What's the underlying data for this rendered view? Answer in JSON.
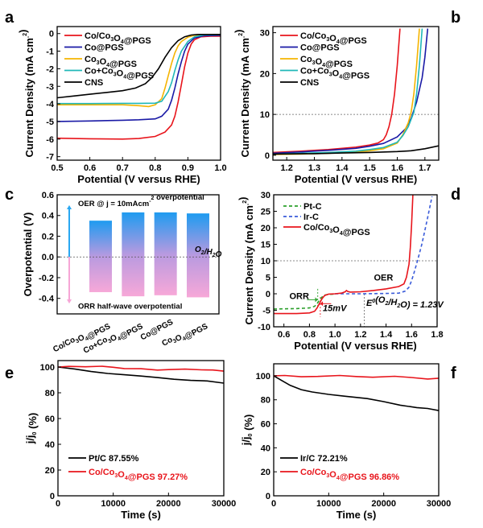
{
  "chart_data": [
    {
      "panel": "a",
      "type": "line",
      "xlabel": "Potential (V versus RHE)",
      "ylabel": "Current Density (mA cm⁻²)",
      "xlim": [
        0.5,
        1.0
      ],
      "ylim": [
        -7.2,
        0.4
      ],
      "xticks": [
        0.5,
        0.6,
        0.7,
        0.8,
        0.9,
        1.0
      ],
      "xtick_labels": [
        "0.5",
        "0.6",
        "0.7",
        "0.8",
        "0.9",
        "1.0"
      ],
      "yticks": [
        0,
        -1,
        -2,
        -3,
        -4,
        -5,
        -6,
        -7
      ],
      "ytick_labels": [
        "0",
        "-1",
        "-2",
        "-3",
        "-4",
        "-5",
        "-6",
        "-7"
      ],
      "legend_position": "top-left",
      "series": [
        {
          "name": "Co/Co₃O₄@PGS",
          "color": "#e8141b",
          "x": [
            0.5,
            0.6,
            0.7,
            0.75,
            0.8,
            0.83,
            0.85,
            0.86,
            0.87,
            0.88,
            0.89,
            0.9,
            0.91,
            0.92,
            0.94,
            0.97,
            1.0
          ],
          "y": [
            -5.95,
            -5.98,
            -6.0,
            -5.97,
            -5.85,
            -5.6,
            -5.2,
            -4.7,
            -3.9,
            -2.9,
            -1.9,
            -1.1,
            -0.6,
            -0.35,
            -0.18,
            -0.15,
            -0.15
          ]
        },
        {
          "name": "Co@PGS",
          "color": "#1a1aa6",
          "x": [
            0.5,
            0.6,
            0.7,
            0.75,
            0.8,
            0.82,
            0.84,
            0.85,
            0.86,
            0.87,
            0.88,
            0.89,
            0.9,
            0.92,
            0.95,
            1.0
          ],
          "y": [
            -5.0,
            -4.97,
            -4.93,
            -4.9,
            -4.85,
            -4.7,
            -4.3,
            -3.8,
            -3.1,
            -2.3,
            -1.6,
            -1.0,
            -0.6,
            -0.25,
            -0.12,
            -0.1
          ]
        },
        {
          "name": "Co₃O₄@PGS",
          "color": "#f5b400",
          "x": [
            0.5,
            0.6,
            0.7,
            0.75,
            0.78,
            0.8,
            0.82,
            0.83,
            0.84,
            0.85,
            0.86,
            0.87,
            0.88,
            0.9,
            0.92,
            0.95,
            1.0
          ],
          "y": [
            -4.05,
            -4.05,
            -4.05,
            -4.1,
            -4.15,
            -4.05,
            -3.7,
            -3.1,
            -2.4,
            -1.7,
            -1.1,
            -0.7,
            -0.45,
            -0.2,
            -0.1,
            -0.05,
            -0.05
          ]
        },
        {
          "name": "Co+Co₃O₄@PGS",
          "color": "#20b8b8",
          "x": [
            0.5,
            0.6,
            0.7,
            0.75,
            0.8,
            0.82,
            0.84,
            0.85,
            0.86,
            0.87,
            0.88,
            0.9,
            0.92,
            0.95,
            1.0
          ],
          "y": [
            -3.98,
            -3.98,
            -3.97,
            -3.97,
            -3.96,
            -3.85,
            -3.3,
            -2.8,
            -2.1,
            -1.5,
            -1.0,
            -0.45,
            -0.18,
            -0.07,
            -0.05
          ]
        },
        {
          "name": "CNS",
          "color": "#000000",
          "x": [
            0.5,
            0.55,
            0.6,
            0.65,
            0.7,
            0.74,
            0.77,
            0.79,
            0.81,
            0.83,
            0.85,
            0.87,
            0.89,
            0.91,
            0.93,
            0.95,
            1.0
          ],
          "y": [
            -3.65,
            -3.55,
            -3.45,
            -3.35,
            -3.25,
            -3.1,
            -2.85,
            -2.5,
            -2.0,
            -1.35,
            -0.8,
            -0.4,
            -0.18,
            -0.08,
            -0.05,
            -0.05,
            -0.05
          ]
        }
      ]
    },
    {
      "panel": "b",
      "type": "line",
      "xlabel": "Potential (V versus RHE)",
      "ylabel": "Current Density (mA cm⁻²)",
      "xlim": [
        1.15,
        1.75
      ],
      "ylim": [
        -1.2,
        31.5
      ],
      "xticks": [
        1.2,
        1.3,
        1.4,
        1.5,
        1.6,
        1.7
      ],
      "xtick_labels": [
        "1.2",
        "1.3",
        "1.4",
        "1.5",
        "1.6",
        "1.7"
      ],
      "yticks": [
        0,
        10,
        20,
        30
      ],
      "ytick_labels": [
        "0",
        "10",
        "20",
        "30"
      ],
      "reference_line": {
        "y": 10,
        "style": "dotted"
      },
      "legend_position": "top-left",
      "series": [
        {
          "name": "Co/Co₃O₄@PGS",
          "color": "#e8141b",
          "x": [
            1.15,
            1.25,
            1.35,
            1.45,
            1.5,
            1.53,
            1.55,
            1.56,
            1.57,
            1.58,
            1.59,
            1.6,
            1.61
          ],
          "y": [
            0.7,
            1.0,
            1.4,
            2.0,
            2.5,
            3.0,
            3.8,
            5.0,
            7.0,
            10.0,
            15.0,
            22.0,
            31.0
          ]
        },
        {
          "name": "Co@PGS",
          "color": "#1a1aa6",
          "x": [
            1.15,
            1.25,
            1.35,
            1.45,
            1.5,
            1.55,
            1.6,
            1.63,
            1.65,
            1.67,
            1.69,
            1.7,
            1.71
          ],
          "y": [
            0.5,
            0.8,
            1.2,
            1.7,
            2.2,
            2.9,
            4.5,
            6.5,
            9.0,
            13.0,
            19.0,
            24.0,
            31.0
          ]
        },
        {
          "name": "Co₃O₄@PGS",
          "color": "#f5b400",
          "x": [
            1.15,
            1.25,
            1.35,
            1.45,
            1.5,
            1.55,
            1.6,
            1.62,
            1.64,
            1.65,
            1.66,
            1.67,
            1.68
          ],
          "y": [
            0.2,
            0.3,
            0.5,
            0.8,
            1.1,
            1.6,
            3.0,
            5.0,
            8.0,
            10.5,
            15.0,
            22.0,
            31.0
          ]
        },
        {
          "name": "Co+Co₃O₄@PGS",
          "color": "#20b8b8",
          "x": [
            1.15,
            1.25,
            1.35,
            1.45,
            1.5,
            1.55,
            1.6,
            1.62,
            1.64,
            1.66,
            1.67,
            1.68,
            1.69
          ],
          "y": [
            0.3,
            0.5,
            0.7,
            1.0,
            1.4,
            1.9,
            3.2,
            4.8,
            7.0,
            10.5,
            15.0,
            22.0,
            31.0
          ]
        },
        {
          "name": "CNS",
          "color": "#000000",
          "x": [
            1.15,
            1.3,
            1.4,
            1.5,
            1.6,
            1.65,
            1.7,
            1.75
          ],
          "y": [
            0.3,
            0.4,
            0.55,
            0.7,
            0.9,
            1.1,
            1.6,
            2.3
          ]
        }
      ]
    },
    {
      "panel": "c",
      "type": "bar",
      "ylabel": "Overpotential (V)",
      "ylim": [
        -0.55,
        0.6
      ],
      "yticks": [
        0.6,
        0.4,
        0.2,
        0.0,
        -0.2,
        -0.4
      ],
      "ytick_labels": [
        "0.6",
        "0.4",
        "0.2",
        "0.0",
        "-0.2",
        "-0.4"
      ],
      "categories": [
        "Co/Co₃O₄@PGS",
        "Co+Co₃O₄@PGS",
        "Co@PGS",
        "Co₃O₄@PGS"
      ],
      "series": [
        {
          "name": "OER @ j = 10mAcm⁻² overpotential",
          "values": [
            0.35,
            0.43,
            0.43,
            0.42
          ]
        },
        {
          "name": "ORR half-wave overpotential",
          "values": [
            -0.34,
            -0.38,
            -0.37,
            -0.39
          ]
        }
      ],
      "annotations": {
        "top": "OER @ j = 10mAcm⁻² overpotential",
        "bottom": "ORR half-wave overpotential",
        "zero_line": "O₂/H₂O"
      },
      "colors": {
        "top": "#1e9bf0",
        "middle": "#b89ae0",
        "bottom": "#f7a8d8",
        "arrow_up": "#2aa8f2",
        "arrow_down": "#f6a6d6"
      }
    },
    {
      "panel": "d",
      "type": "line",
      "xlabel": "Potential (V versus RHE)",
      "ylabel": "Current Density (mA cm⁻²)",
      "xlim": [
        0.52,
        1.8
      ],
      "ylim": [
        -10,
        30
      ],
      "xticks": [
        0.6,
        0.8,
        1.0,
        1.2,
        1.4,
        1.6,
        1.8
      ],
      "xtick_labels": [
        "0.6",
        "0.8",
        "1.0",
        "1.2",
        "1.4",
        "1.6",
        "1.8"
      ],
      "yticks": [
        30,
        25,
        20,
        15,
        10,
        5,
        0,
        -5,
        -10
      ],
      "ytick_labels": [
        "30",
        "25",
        "20",
        "15",
        "10",
        "5",
        "0",
        "-5",
        "-10"
      ],
      "reference_lines": [
        {
          "y": 10,
          "style": "dotted"
        },
        {
          "x": 1.23,
          "style": "dotted"
        }
      ],
      "legend_position": "top-left",
      "annotations": [
        "ORR",
        "OER",
        "15mV",
        "E⁰(O₂/H₂O) = 1.23V"
      ],
      "series": [
        {
          "name": "Pt-C",
          "color": "#2ca02c",
          "style": "dashed",
          "x": [
            0.52,
            0.7,
            0.8,
            0.84,
            0.86,
            0.88,
            0.9,
            0.92,
            0.95,
            1.0
          ],
          "y": [
            -4.6,
            -4.5,
            -4.3,
            -3.8,
            -3.0,
            -1.8,
            -0.9,
            -0.4,
            -0.2,
            -0.1
          ]
        },
        {
          "name": "Ir-C",
          "color": "#3a5bd9",
          "style": "dashed",
          "x": [
            1.0,
            1.2,
            1.4,
            1.5,
            1.55,
            1.58,
            1.6,
            1.62,
            1.65,
            1.68,
            1.72,
            1.76
          ],
          "y": [
            0.0,
            0.0,
            0.1,
            0.2,
            0.8,
            2.0,
            4.0,
            6.5,
            10.5,
            15.0,
            22.0,
            29.5
          ]
        },
        {
          "name": "Co/Co₃O₄@PGS",
          "color": "#e8141b",
          "style": "solid",
          "x": [
            0.52,
            0.7,
            0.8,
            0.84,
            0.86,
            0.88,
            0.9,
            0.92,
            0.95,
            1.0,
            1.05,
            1.08,
            1.09,
            1.1,
            1.12,
            1.2,
            1.3,
            1.4,
            1.5,
            1.54,
            1.56,
            1.58,
            1.59,
            1.6,
            1.61
          ],
          "y": [
            -6.0,
            -6.0,
            -5.8,
            -5.3,
            -4.3,
            -2.8,
            -1.4,
            -0.5,
            -0.1,
            0.0,
            0.2,
            0.6,
            1.0,
            0.7,
            0.5,
            0.6,
            1.0,
            1.5,
            2.2,
            3.0,
            5.0,
            9.0,
            14.0,
            21.0,
            30.0
          ]
        }
      ]
    },
    {
      "panel": "e",
      "type": "line",
      "xlabel": "Time (s)",
      "ylabel": "j/j₀ (%)",
      "xlim": [
        0,
        30000
      ],
      "ylim": [
        0,
        105
      ],
      "xticks": [
        0,
        10000,
        20000,
        30000
      ],
      "xtick_labels": [
        "0",
        "10000",
        "20000",
        "30000"
      ],
      "yticks": [
        0,
        20,
        40,
        60,
        80,
        100
      ],
      "ytick_labels": [
        "0",
        "20",
        "40",
        "60",
        "80",
        "100"
      ],
      "legend_position": "bottom-left",
      "series": [
        {
          "name": "Pt/C",
          "label_value": "87.55%",
          "color": "#000000",
          "x": [
            0,
            3000,
            6000,
            9000,
            12000,
            15000,
            18000,
            21000,
            24000,
            27000,
            30000
          ],
          "y": [
            100,
            98.5,
            96.5,
            95,
            94,
            93,
            91.8,
            90.5,
            89.6,
            89.2,
            87.5
          ]
        },
        {
          "name": "Co/Co₃O₄@PGS",
          "label_value": "97.27%",
          "color": "#e8141b",
          "x": [
            0,
            2000,
            5000,
            8000,
            10000,
            12000,
            15000,
            18000,
            20000,
            23000,
            26000,
            28000,
            30000
          ],
          "y": [
            100,
            100.5,
            100.2,
            100.6,
            99.8,
            98.8,
            98.7,
            97.6,
            98.0,
            98.4,
            97.8,
            97.7,
            96.8
          ]
        }
      ]
    },
    {
      "panel": "f",
      "type": "line",
      "xlabel": "Time (s)",
      "ylabel": "j/j₀ (%)",
      "xlim": [
        0,
        30000
      ],
      "ylim": [
        0,
        110
      ],
      "xticks": [
        0,
        10000,
        20000,
        30000
      ],
      "xtick_labels": [
        "0",
        "10000",
        "20000",
        "30000"
      ],
      "yticks": [
        0,
        20,
        40,
        60,
        80,
        100
      ],
      "ytick_labels": [
        "0",
        "20",
        "40",
        "60",
        "80",
        "100"
      ],
      "legend_position": "bottom-left",
      "series": [
        {
          "name": "Ir/C",
          "label_value": "72.21%",
          "color": "#000000",
          "x": [
            0,
            1500,
            3000,
            5000,
            7000,
            10000,
            13000,
            17000,
            20000,
            23000,
            26000,
            28000,
            30000
          ],
          "y": [
            100,
            96,
            92,
            88.5,
            86.5,
            84.5,
            83,
            81,
            78.5,
            75.5,
            73.5,
            72.8,
            71
          ]
        },
        {
          "name": "Co/Co₃O₄@PGS",
          "label_value": "96.86%",
          "color": "#e8141b",
          "x": [
            0,
            2000,
            5000,
            8000,
            12000,
            15000,
            18000,
            22000,
            25000,
            28000,
            30000
          ],
          "y": [
            100,
            100.3,
            99.2,
            99.5,
            100.3,
            99.4,
            98.8,
            99.6,
            98.6,
            97.3,
            98.0
          ]
        }
      ]
    }
  ],
  "panel_labels": [
    "a",
    "b",
    "c",
    "d",
    "e",
    "f"
  ]
}
